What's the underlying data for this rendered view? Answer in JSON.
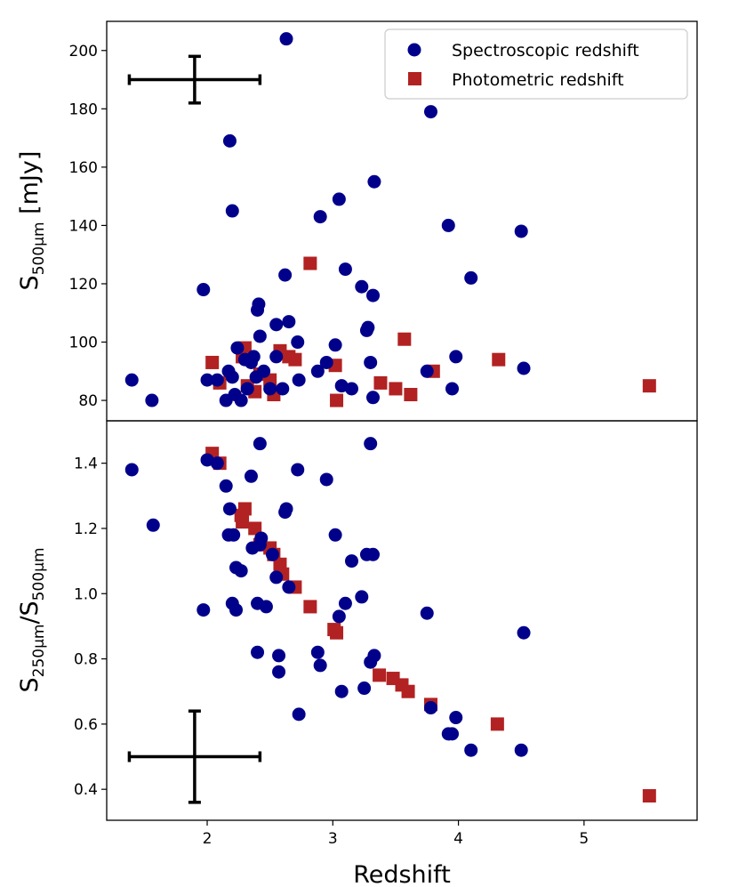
{
  "chart_data": [
    {
      "panel": "top",
      "type": "scatter",
      "ylabel": {
        "main": "S",
        "sub": "500µm",
        "unit": " [mJy]"
      },
      "xlim": [
        1.2,
        5.9
      ],
      "ylim": [
        73,
        210
      ],
      "yticks": [
        80,
        100,
        120,
        140,
        160,
        180,
        200
      ],
      "legend": {
        "placement": "top-right",
        "entries": [
          {
            "label": "Spectroscopic redshift",
            "marker": "circle",
            "color": "#00008B"
          },
          {
            "label": "Photometric redshift",
            "marker": "square",
            "color": "#B22222"
          }
        ]
      },
      "error_bar": {
        "x": 1.9,
        "y": 190,
        "x_err_low": 0.52,
        "x_err_high": 0.52,
        "y_err": 8
      },
      "series": [
        {
          "name": "Spectroscopic redshift",
          "marker": "circle",
          "color": "#00008B",
          "points": [
            [
              1.4,
              87
            ],
            [
              1.56,
              80
            ],
            [
              1.97,
              118
            ],
            [
              2.0,
              87
            ],
            [
              2.08,
              87
            ],
            [
              2.15,
              80
            ],
            [
              2.17,
              90
            ],
            [
              2.18,
              169
            ],
            [
              2.2,
              88
            ],
            [
              2.2,
              145
            ],
            [
              2.22,
              82
            ],
            [
              2.24,
              98
            ],
            [
              2.27,
              80
            ],
            [
              2.3,
              94
            ],
            [
              2.32,
              84
            ],
            [
              2.35,
              93
            ],
            [
              2.37,
              95
            ],
            [
              2.39,
              88
            ],
            [
              2.4,
              111
            ],
            [
              2.41,
              113
            ],
            [
              2.42,
              102
            ],
            [
              2.45,
              90
            ],
            [
              2.5,
              84
            ],
            [
              2.55,
              95
            ],
            [
              2.55,
              106
            ],
            [
              2.6,
              84
            ],
            [
              2.62,
              123
            ],
            [
              2.63,
              204
            ],
            [
              2.65,
              107
            ],
            [
              2.72,
              100
            ],
            [
              2.73,
              87
            ],
            [
              2.88,
              90
            ],
            [
              2.9,
              143
            ],
            [
              2.95,
              93
            ],
            [
              3.02,
              99
            ],
            [
              3.05,
              149
            ],
            [
              3.07,
              85
            ],
            [
              3.1,
              125
            ],
            [
              3.15,
              84
            ],
            [
              3.23,
              119
            ],
            [
              3.27,
              104
            ],
            [
              3.28,
              105
            ],
            [
              3.3,
              93
            ],
            [
              3.32,
              81
            ],
            [
              3.32,
              116
            ],
            [
              3.33,
              155
            ],
            [
              3.75,
              90
            ],
            [
              3.78,
              179
            ],
            [
              3.92,
              140
            ],
            [
              3.95,
              84
            ],
            [
              3.98,
              95
            ],
            [
              4.1,
              122
            ],
            [
              4.5,
              138
            ],
            [
              4.52,
              91
            ]
          ]
        },
        {
          "name": "Photometric redshift",
          "marker": "square",
          "color": "#B22222",
          "points": [
            [
              2.04,
              93
            ],
            [
              2.1,
              86
            ],
            [
              2.28,
              95
            ],
            [
              2.3,
              98
            ],
            [
              2.32,
              85
            ],
            [
              2.38,
              83
            ],
            [
              2.42,
              89
            ],
            [
              2.5,
              87
            ],
            [
              2.53,
              82
            ],
            [
              2.58,
              97
            ],
            [
              2.65,
              95
            ],
            [
              2.7,
              94
            ],
            [
              2.82,
              127
            ],
            [
              3.02,
              92
            ],
            [
              3.03,
              80
            ],
            [
              3.38,
              86
            ],
            [
              3.5,
              84
            ],
            [
              3.57,
              101
            ],
            [
              3.62,
              82
            ],
            [
              3.8,
              90
            ],
            [
              4.32,
              94
            ],
            [
              5.52,
              85
            ]
          ]
        }
      ]
    },
    {
      "panel": "bottom",
      "type": "scatter",
      "ylabel": {
        "main": "S",
        "sub1": "250µm",
        "sep": "/S",
        "sub2": "500µm"
      },
      "xlabel": "Redshift",
      "xlim": [
        1.2,
        5.9
      ],
      "ylim": [
        0.305,
        1.53
      ],
      "xticks": [
        2,
        3,
        4,
        5
      ],
      "yticks": [
        0.4,
        0.6,
        0.8,
        1.0,
        1.2,
        1.4
      ],
      "ytick_labels": [
        "0.4",
        "0.6",
        "0.8",
        "1.0",
        "1.2",
        "1.4"
      ],
      "error_bar": {
        "x": 1.9,
        "y": 0.5,
        "x_err_low": 0.52,
        "x_err_high": 0.52,
        "y_err": 0.14
      },
      "series": [
        {
          "name": "Spectroscopic redshift",
          "marker": "circle",
          "color": "#00008B",
          "points": [
            [
              1.4,
              1.38
            ],
            [
              1.57,
              1.21
            ],
            [
              1.97,
              0.95
            ],
            [
              2.0,
              1.41
            ],
            [
              2.08,
              1.4
            ],
            [
              2.15,
              1.33
            ],
            [
              2.17,
              1.18
            ],
            [
              2.18,
              1.26
            ],
            [
              2.2,
              0.97
            ],
            [
              2.21,
              1.18
            ],
            [
              2.23,
              0.95
            ],
            [
              2.23,
              1.08
            ],
            [
              2.27,
              1.07
            ],
            [
              2.35,
              1.36
            ],
            [
              2.36,
              1.14
            ],
            [
              2.4,
              0.97
            ],
            [
              2.4,
              0.82
            ],
            [
              2.42,
              1.15
            ],
            [
              2.42,
              1.46
            ],
            [
              2.43,
              1.17
            ],
            [
              2.47,
              0.96
            ],
            [
              2.52,
              1.12
            ],
            [
              2.55,
              1.05
            ],
            [
              2.57,
              0.76
            ],
            [
              2.57,
              0.81
            ],
            [
              2.62,
              1.25
            ],
            [
              2.63,
              1.26
            ],
            [
              2.65,
              1.02
            ],
            [
              2.72,
              1.38
            ],
            [
              2.73,
              0.63
            ],
            [
              2.88,
              0.82
            ],
            [
              2.9,
              0.78
            ],
            [
              2.95,
              1.35
            ],
            [
              3.02,
              1.18
            ],
            [
              3.05,
              0.93
            ],
            [
              3.07,
              0.7
            ],
            [
              3.1,
              0.97
            ],
            [
              3.15,
              1.1
            ],
            [
              3.23,
              0.99
            ],
            [
              3.25,
              0.71
            ],
            [
              3.27,
              1.12
            ],
            [
              3.3,
              1.46
            ],
            [
              3.3,
              0.79
            ],
            [
              3.32,
              1.12
            ],
            [
              3.33,
              0.81
            ],
            [
              3.75,
              0.94
            ],
            [
              3.78,
              0.65
            ],
            [
              3.92,
              0.57
            ],
            [
              3.95,
              0.57
            ],
            [
              3.98,
              0.62
            ],
            [
              4.1,
              0.52
            ],
            [
              4.5,
              0.52
            ],
            [
              4.52,
              0.88
            ]
          ]
        },
        {
          "name": "Photometric redshift",
          "marker": "square",
          "color": "#B22222",
          "points": [
            [
              2.04,
              1.43
            ],
            [
              2.1,
              1.4
            ],
            [
              2.27,
              1.24
            ],
            [
              2.28,
              1.22
            ],
            [
              2.3,
              1.26
            ],
            [
              2.38,
              1.2
            ],
            [
              2.42,
              1.15
            ],
            [
              2.5,
              1.14
            ],
            [
              2.53,
              1.12
            ],
            [
              2.58,
              1.09
            ],
            [
              2.6,
              1.06
            ],
            [
              2.7,
              1.02
            ],
            [
              2.82,
              0.96
            ],
            [
              3.01,
              0.89
            ],
            [
              3.03,
              0.88
            ],
            [
              3.37,
              0.75
            ],
            [
              3.48,
              0.74
            ],
            [
              3.55,
              0.72
            ],
            [
              3.6,
              0.7
            ],
            [
              3.78,
              0.66
            ],
            [
              4.31,
              0.6
            ],
            [
              5.52,
              0.38
            ]
          ]
        }
      ]
    }
  ]
}
